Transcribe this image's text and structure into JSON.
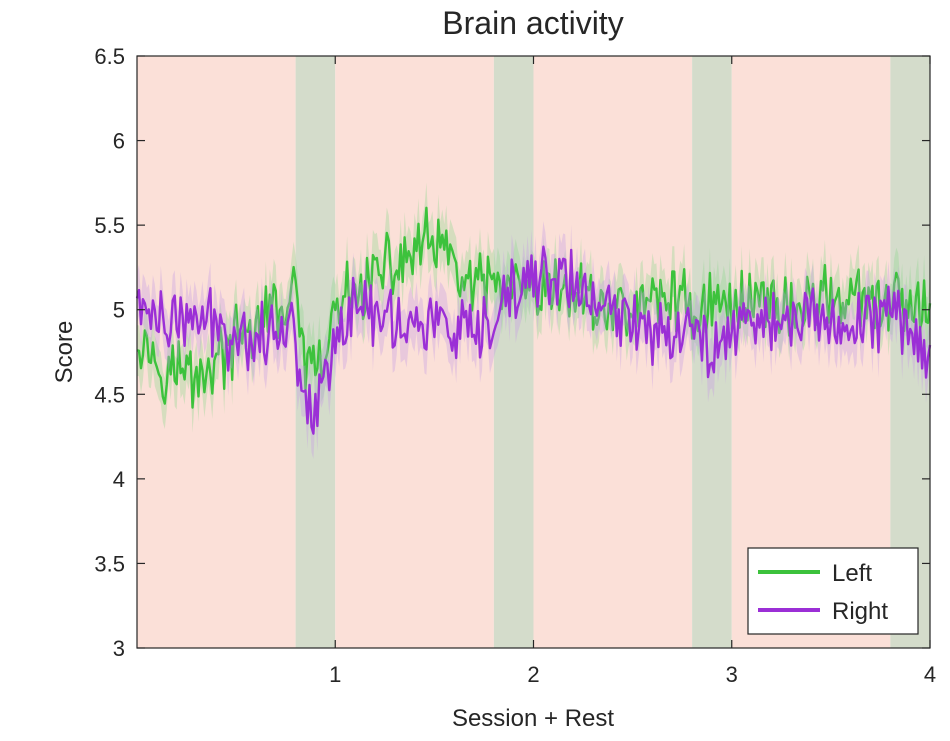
{
  "chart_data": {
    "type": "line",
    "title": "Brain activity",
    "xlabel": "Session + Rest",
    "ylabel": "Score",
    "xlim": [
      0,
      4
    ],
    "ylim": [
      3,
      6.5
    ],
    "xticks": [
      1,
      2,
      3,
      4
    ],
    "xtick_labels": [
      "1",
      "2",
      "3",
      "4"
    ],
    "yticks": [
      3,
      3.5,
      4,
      4.5,
      5,
      5.5,
      6,
      6.5
    ],
    "ytick_labels": [
      "3",
      "3.5",
      "4",
      "4.5",
      "5",
      "5.5",
      "6",
      "6.5"
    ],
    "grid": false,
    "legend": {
      "position": "bottom-right",
      "entries": [
        "Left",
        "Right"
      ]
    },
    "bands": [
      {
        "kind": "session",
        "x0": 0.0,
        "x1": 0.8,
        "color": "#fbe0d8"
      },
      {
        "kind": "rest",
        "x0": 0.8,
        "x1": 1.0,
        "color": "#d4dccb"
      },
      {
        "kind": "session",
        "x0": 1.0,
        "x1": 1.8,
        "color": "#fbe0d8"
      },
      {
        "kind": "rest",
        "x0": 1.8,
        "x1": 2.0,
        "color": "#d4dccb"
      },
      {
        "kind": "session",
        "x0": 2.0,
        "x1": 2.8,
        "color": "#fbe0d8"
      },
      {
        "kind": "rest",
        "x0": 2.8,
        "x1": 3.0,
        "color": "#d4dccb"
      },
      {
        "kind": "session",
        "x0": 3.0,
        "x1": 3.8,
        "color": "#fbe0d8"
      },
      {
        "kind": "rest",
        "x0": 3.8,
        "x1": 4.0,
        "color": "#d4dccb"
      }
    ],
    "series": [
      {
        "name": "Left",
        "color": "#3cc23c",
        "band_color": "#8fd68f",
        "x": [
          0.0,
          0.1,
          0.2,
          0.3,
          0.4,
          0.5,
          0.6,
          0.7,
          0.8,
          0.85,
          0.9,
          0.95,
          1.0,
          1.1,
          1.2,
          1.3,
          1.4,
          1.5,
          1.6,
          1.7,
          1.8,
          1.9,
          2.0,
          2.1,
          2.2,
          2.3,
          2.4,
          2.5,
          2.6,
          2.7,
          2.8,
          2.9,
          3.0,
          3.1,
          3.2,
          3.3,
          3.4,
          3.5,
          3.6,
          3.7,
          3.8,
          3.9,
          4.0
        ],
        "y": [
          4.9,
          4.7,
          4.65,
          4.6,
          4.7,
          4.8,
          4.9,
          5.0,
          5.05,
          4.7,
          4.6,
          4.7,
          5.0,
          5.1,
          5.2,
          5.25,
          5.35,
          5.4,
          5.25,
          5.1,
          5.15,
          5.1,
          5.05,
          5.1,
          5.1,
          5.05,
          5.0,
          5.0,
          5.05,
          5.1,
          5.0,
          5.05,
          5.0,
          5.1,
          5.05,
          5.0,
          5.05,
          5.1,
          5.05,
          5.0,
          5.05,
          5.0,
          4.95
        ],
        "err": 0.15
      },
      {
        "name": "Right",
        "color": "#9b2fd6",
        "band_color": "#c69be6",
        "x": [
          0.0,
          0.1,
          0.2,
          0.3,
          0.4,
          0.5,
          0.6,
          0.7,
          0.8,
          0.85,
          0.9,
          0.95,
          1.0,
          1.1,
          1.2,
          1.3,
          1.4,
          1.5,
          1.6,
          1.7,
          1.8,
          1.9,
          2.0,
          2.1,
          2.2,
          2.3,
          2.4,
          2.5,
          2.6,
          2.7,
          2.8,
          2.9,
          3.0,
          3.1,
          3.2,
          3.3,
          3.4,
          3.5,
          3.6,
          3.7,
          3.8,
          3.9,
          4.0
        ],
        "y": [
          5.05,
          4.95,
          4.9,
          4.95,
          4.9,
          4.85,
          4.85,
          4.9,
          4.85,
          4.5,
          4.4,
          4.6,
          4.9,
          5.0,
          5.0,
          4.95,
          4.9,
          4.95,
          4.85,
          4.8,
          4.9,
          5.1,
          5.2,
          5.2,
          5.15,
          5.05,
          4.95,
          4.95,
          4.9,
          4.9,
          4.85,
          4.8,
          4.9,
          4.95,
          4.95,
          4.9,
          4.95,
          4.95,
          4.9,
          4.95,
          5.0,
          4.9,
          4.75
        ],
        "err": 0.15
      }
    ]
  }
}
